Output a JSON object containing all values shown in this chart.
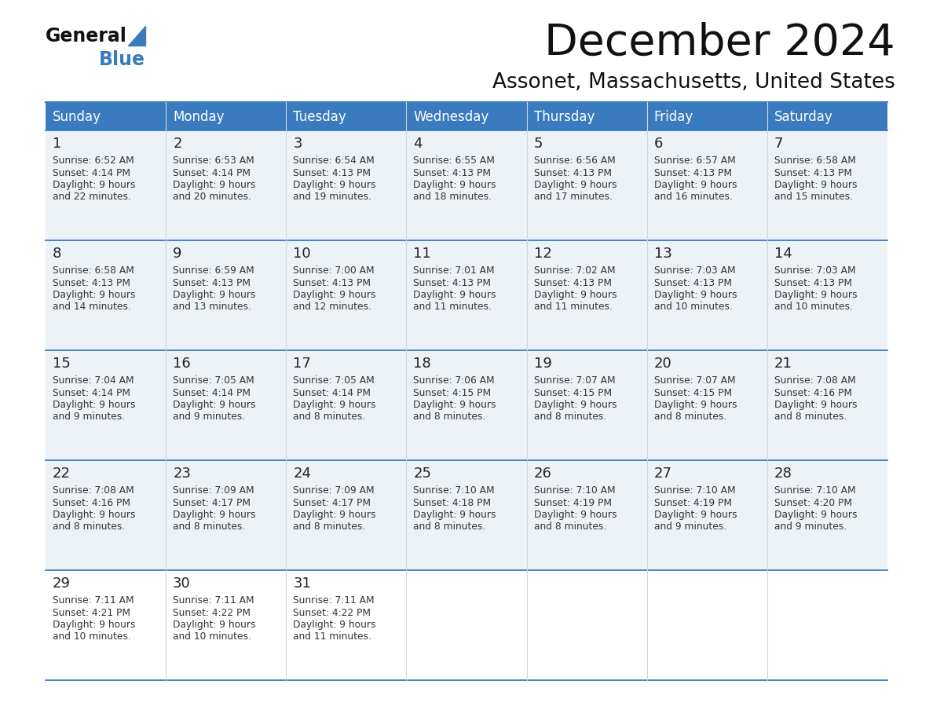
{
  "title": "December 2024",
  "subtitle": "Assonet, Massachusetts, United States",
  "header_bg": "#3a7bbf",
  "header_text": "#ffffff",
  "row_bg_light": "#edf2f7",
  "row_bg_white": "#ffffff",
  "cell_border_color": "#3a7bbf",
  "col_border_color": "#c8d8e8",
  "text_color": "#222222",
  "cell_text_color": "#333333",
  "day_names": [
    "Sunday",
    "Monday",
    "Tuesday",
    "Wednesday",
    "Thursday",
    "Friday",
    "Saturday"
  ],
  "calendar": [
    [
      {
        "day": 1,
        "sunrise": "6:52 AM",
        "sunset": "4:14 PM",
        "daylight_min": "22"
      },
      {
        "day": 2,
        "sunrise": "6:53 AM",
        "sunset": "4:14 PM",
        "daylight_min": "20"
      },
      {
        "day": 3,
        "sunrise": "6:54 AM",
        "sunset": "4:13 PM",
        "daylight_min": "19"
      },
      {
        "day": 4,
        "sunrise": "6:55 AM",
        "sunset": "4:13 PM",
        "daylight_min": "18"
      },
      {
        "day": 5,
        "sunrise": "6:56 AM",
        "sunset": "4:13 PM",
        "daylight_min": "17"
      },
      {
        "day": 6,
        "sunrise": "6:57 AM",
        "sunset": "4:13 PM",
        "daylight_min": "16"
      },
      {
        "day": 7,
        "sunrise": "6:58 AM",
        "sunset": "4:13 PM",
        "daylight_min": "15"
      }
    ],
    [
      {
        "day": 8,
        "sunrise": "6:58 AM",
        "sunset": "4:13 PM",
        "daylight_min": "14"
      },
      {
        "day": 9,
        "sunrise": "6:59 AM",
        "sunset": "4:13 PM",
        "daylight_min": "13"
      },
      {
        "day": 10,
        "sunrise": "7:00 AM",
        "sunset": "4:13 PM",
        "daylight_min": "12"
      },
      {
        "day": 11,
        "sunrise": "7:01 AM",
        "sunset": "4:13 PM",
        "daylight_min": "11"
      },
      {
        "day": 12,
        "sunrise": "7:02 AM",
        "sunset": "4:13 PM",
        "daylight_min": "11"
      },
      {
        "day": 13,
        "sunrise": "7:03 AM",
        "sunset": "4:13 PM",
        "daylight_min": "10"
      },
      {
        "day": 14,
        "sunrise": "7:03 AM",
        "sunset": "4:13 PM",
        "daylight_min": "10"
      }
    ],
    [
      {
        "day": 15,
        "sunrise": "7:04 AM",
        "sunset": "4:14 PM",
        "daylight_min": "9"
      },
      {
        "day": 16,
        "sunrise": "7:05 AM",
        "sunset": "4:14 PM",
        "daylight_min": "9"
      },
      {
        "day": 17,
        "sunrise": "7:05 AM",
        "sunset": "4:14 PM",
        "daylight_min": "8"
      },
      {
        "day": 18,
        "sunrise": "7:06 AM",
        "sunset": "4:15 PM",
        "daylight_min": "8"
      },
      {
        "day": 19,
        "sunrise": "7:07 AM",
        "sunset": "4:15 PM",
        "daylight_min": "8"
      },
      {
        "day": 20,
        "sunrise": "7:07 AM",
        "sunset": "4:15 PM",
        "daylight_min": "8"
      },
      {
        "day": 21,
        "sunrise": "7:08 AM",
        "sunset": "4:16 PM",
        "daylight_min": "8"
      }
    ],
    [
      {
        "day": 22,
        "sunrise": "7:08 AM",
        "sunset": "4:16 PM",
        "daylight_min": "8"
      },
      {
        "day": 23,
        "sunrise": "7:09 AM",
        "sunset": "4:17 PM",
        "daylight_min": "8"
      },
      {
        "day": 24,
        "sunrise": "7:09 AM",
        "sunset": "4:17 PM",
        "daylight_min": "8"
      },
      {
        "day": 25,
        "sunrise": "7:10 AM",
        "sunset": "4:18 PM",
        "daylight_min": "8"
      },
      {
        "day": 26,
        "sunrise": "7:10 AM",
        "sunset": "4:19 PM",
        "daylight_min": "8"
      },
      {
        "day": 27,
        "sunrise": "7:10 AM",
        "sunset": "4:19 PM",
        "daylight_min": "9"
      },
      {
        "day": 28,
        "sunrise": "7:10 AM",
        "sunset": "4:20 PM",
        "daylight_min": "9"
      }
    ],
    [
      {
        "day": 29,
        "sunrise": "7:11 AM",
        "sunset": "4:21 PM",
        "daylight_min": "10"
      },
      {
        "day": 30,
        "sunrise": "7:11 AM",
        "sunset": "4:22 PM",
        "daylight_min": "10"
      },
      {
        "day": 31,
        "sunrise": "7:11 AM",
        "sunset": "4:22 PM",
        "daylight_min": "11"
      },
      null,
      null,
      null,
      null
    ]
  ],
  "fig_w": 11.88,
  "fig_h": 9.18,
  "dpi": 100
}
